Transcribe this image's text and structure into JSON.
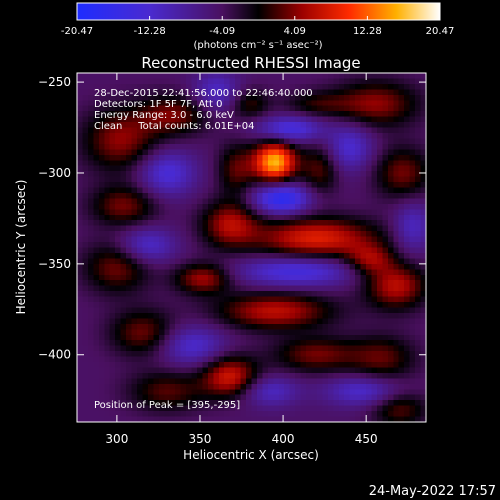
{
  "colorbar": {
    "tick_labels": [
      "-20.47",
      "-12.28",
      "-4.09",
      "4.09",
      "12.28",
      "20.47"
    ],
    "tick_values": [
      -20.47,
      -12.28,
      -4.09,
      4.09,
      12.28,
      20.47
    ],
    "units_label": "(photons cm⁻² s⁻¹ asec⁻²)",
    "range": [
      -20.47,
      20.47
    ]
  },
  "chart_data": {
    "type": "heatmap",
    "title": "Reconstructed RHESSI Image",
    "xlabel": "Heliocentric X (arcsec)",
    "ylabel": "Heliocentric Y (arcsec)",
    "xlim": [
      276,
      486
    ],
    "ylim": [
      -437,
      -245
    ],
    "x_ticks": [
      300,
      350,
      400,
      450
    ],
    "y_ticks": [
      -250,
      -300,
      -350,
      -400
    ],
    "x_tick_labels": [
      "300",
      "350",
      "400",
      "450"
    ],
    "y_tick_labels": [
      "−250",
      "−300",
      "−350",
      "−400"
    ],
    "annotations": [
      "28-Dec-2015 22:41:56.000 to 22:46:40.000",
      "Detectors: 1F 5F 7F, Att 0",
      "Energy Range: 3.0 - 6.0 keV",
      "Clean     Total counts: 6.01E+04"
    ],
    "peak_label": "Position of Peak = [395,-295]",
    "peak": {
      "x": 395,
      "y": -295,
      "value": 20.47
    },
    "blobs": [
      {
        "x": 395,
        "y": -294,
        "sx": 9,
        "sy": 8,
        "a": 20.5
      },
      {
        "x": 399,
        "y": -314,
        "sx": 12,
        "sy": 6,
        "a": -14
      },
      {
        "x": 404,
        "y": -276,
        "sx": 14,
        "sy": 5,
        "a": -10
      },
      {
        "x": 422,
        "y": -298,
        "sx": 8,
        "sy": 10,
        "a": 7
      },
      {
        "x": 372,
        "y": -298,
        "sx": 8,
        "sy": 10,
        "a": 7
      },
      {
        "x": 420,
        "y": -336,
        "sx": 26,
        "sy": 8,
        "a": 13
      },
      {
        "x": 368,
        "y": -328,
        "sx": 12,
        "sy": 9,
        "a": 10
      },
      {
        "x": 408,
        "y": -354,
        "sx": 25,
        "sy": 6,
        "a": -10
      },
      {
        "x": 395,
        "y": -376,
        "sx": 24,
        "sy": 7,
        "a": 11
      },
      {
        "x": 468,
        "y": -362,
        "sx": 13,
        "sy": 9,
        "a": 11
      },
      {
        "x": 452,
        "y": -348,
        "sx": 10,
        "sy": 6,
        "a": 8
      },
      {
        "x": 456,
        "y": -262,
        "sx": 18,
        "sy": 9,
        "a": 9
      },
      {
        "x": 472,
        "y": -300,
        "sx": 12,
        "sy": 10,
        "a": 8
      },
      {
        "x": 440,
        "y": -286,
        "sx": 10,
        "sy": 9,
        "a": -8
      },
      {
        "x": 302,
        "y": -282,
        "sx": 16,
        "sy": 12,
        "a": 9
      },
      {
        "x": 334,
        "y": -268,
        "sx": 15,
        "sy": 8,
        "a": 8
      },
      {
        "x": 330,
        "y": -300,
        "sx": 12,
        "sy": 9,
        "a": -9
      },
      {
        "x": 304,
        "y": -318,
        "sx": 14,
        "sy": 8,
        "a": 8
      },
      {
        "x": 300,
        "y": -352,
        "sx": 14,
        "sy": 10,
        "a": 8
      },
      {
        "x": 352,
        "y": -358,
        "sx": 12,
        "sy": 6,
        "a": 10
      },
      {
        "x": 318,
        "y": -340,
        "sx": 12,
        "sy": 7,
        "a": -8
      },
      {
        "x": 316,
        "y": -388,
        "sx": 14,
        "sy": 9,
        "a": 8
      },
      {
        "x": 345,
        "y": -395,
        "sx": 14,
        "sy": 8,
        "a": -8
      },
      {
        "x": 368,
        "y": -412,
        "sx": 12,
        "sy": 8,
        "a": 12
      },
      {
        "x": 330,
        "y": -420,
        "sx": 16,
        "sy": 8,
        "a": 7
      },
      {
        "x": 420,
        "y": -400,
        "sx": 18,
        "sy": 7,
        "a": 8
      },
      {
        "x": 460,
        "y": -402,
        "sx": 14,
        "sy": 9,
        "a": 7
      },
      {
        "x": 448,
        "y": -420,
        "sx": 16,
        "sy": 6,
        "a": -8
      },
      {
        "x": 470,
        "y": -430,
        "sx": 12,
        "sy": 7,
        "a": 7
      },
      {
        "x": 392,
        "y": -420,
        "sx": 12,
        "sy": 6,
        "a": -7
      },
      {
        "x": 360,
        "y": -255,
        "sx": 10,
        "sy": 8,
        "a": -7
      },
      {
        "x": 380,
        "y": -262,
        "sx": 8,
        "sy": 6,
        "a": 6
      },
      {
        "x": 478,
        "y": -330,
        "sx": 8,
        "sy": 10,
        "a": -7
      },
      {
        "x": 420,
        "y": -262,
        "sx": 14,
        "sy": 5,
        "a": 5
      }
    ]
  },
  "footer": {
    "timestamp": "24-May-2022 17:57"
  }
}
